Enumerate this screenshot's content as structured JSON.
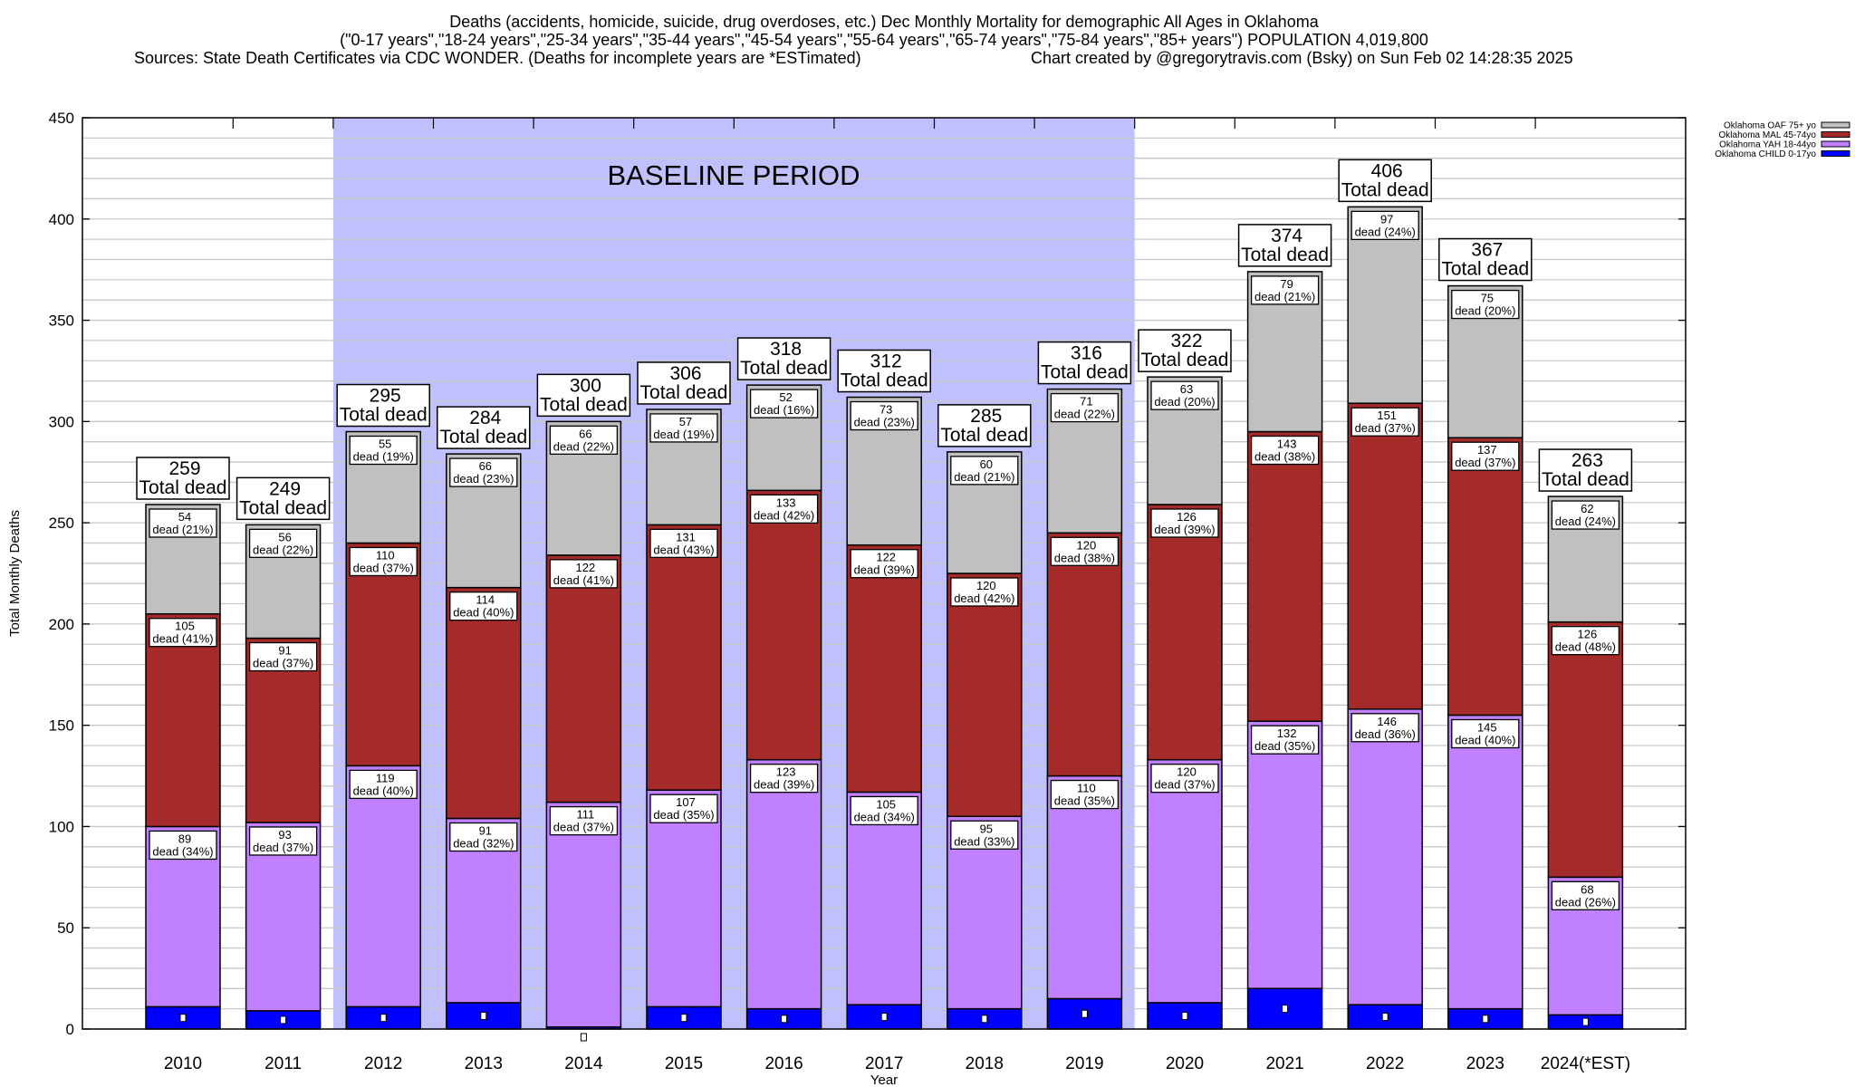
{
  "chart_data": {
    "type": "bar",
    "stacked": true,
    "title_lines": [
      "Deaths (accidents, homicide, suicide, drug overdoses, etc.) Dec Monthly Mortality for demographic All Ages in Oklahoma",
      "(\"0-17 years\",\"18-24 years\",\"25-34 years\",\"35-44 years\",\"45-54 years\",\"55-64 years\",\"65-74 years\",\"75-84 years\",\"85+ years\") POPULATION 4,019,800"
    ],
    "sources": "Sources: State Death Certificates via CDC WONDER. (Deaths for incomplete years are *ESTimated)",
    "credit": "Chart created by @gregorytravis.com (Bsky) on Sun Feb 02 14:28:35 2025",
    "xlabel": "Year",
    "ylabel": "Total Monthly Deaths",
    "ylim": [
      0,
      450
    ],
    "y_ticks": [
      0,
      50,
      100,
      150,
      200,
      250,
      300,
      350,
      400,
      450
    ],
    "grid_step": 10,
    "grid": true,
    "legend_position": "top-right",
    "baseline_annotation": {
      "label": "BASELINE PERIOD",
      "from": "2012",
      "to": "2019",
      "color": "#c0c0ff"
    },
    "total_label": "Total dead",
    "dead_label": "dead",
    "categories": [
      "2010",
      "2011",
      "2012",
      "2013",
      "2014",
      "2015",
      "2016",
      "2017",
      "2018",
      "2019",
      "2020",
      "2021",
      "2022",
      "2023",
      "2024(*EST)"
    ],
    "totals": [
      259,
      249,
      295,
      284,
      300,
      306,
      318,
      312,
      285,
      316,
      322,
      374,
      406,
      367,
      263
    ],
    "series": [
      {
        "name": "Oklahoma CHILD 0-17yo",
        "color": "#0000ff",
        "values": [
          11,
          9,
          11,
          13,
          1,
          11,
          10,
          12,
          10,
          15,
          13,
          20,
          12,
          10,
          7
        ],
        "percents": null
      },
      {
        "name": "Oklahoma YAH 18-44yo",
        "color": "#c080ff",
        "values": [
          89,
          93,
          119,
          91,
          111,
          107,
          123,
          105,
          95,
          110,
          120,
          132,
          146,
          145,
          68
        ],
        "percents": [
          34,
          37,
          40,
          32,
          37,
          35,
          39,
          34,
          33,
          35,
          37,
          35,
          36,
          40,
          26
        ]
      },
      {
        "name": "Oklahoma MAL 45-74yo",
        "color": "#a52a2a",
        "values": [
          105,
          91,
          110,
          114,
          122,
          131,
          133,
          122,
          120,
          120,
          126,
          143,
          151,
          137,
          126
        ],
        "percents": [
          41,
          37,
          37,
          40,
          41,
          43,
          42,
          39,
          42,
          38,
          39,
          38,
          37,
          37,
          48
        ]
      },
      {
        "name": "Oklahoma OAF 75+ yo",
        "color": "#c0c0c0",
        "values": [
          54,
          56,
          55,
          66,
          66,
          57,
          52,
          73,
          60,
          71,
          63,
          79,
          97,
          75,
          62
        ],
        "percents": [
          21,
          22,
          19,
          23,
          22,
          19,
          16,
          23,
          21,
          22,
          20,
          21,
          24,
          20,
          24
        ]
      }
    ]
  }
}
